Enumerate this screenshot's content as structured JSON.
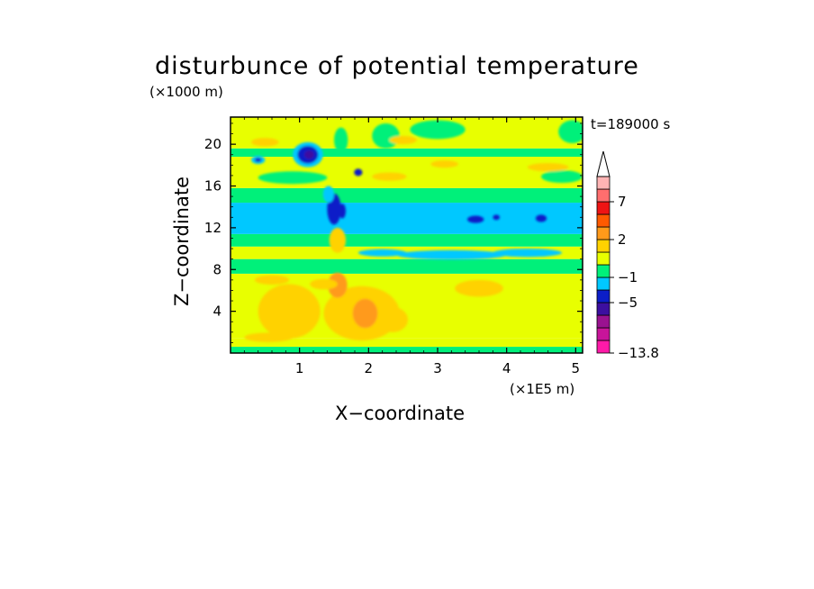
{
  "chart_data": {
    "type": "heatmap",
    "title": "disturbunce of potential temperature",
    "xlabel": "X−coordinate",
    "ylabel": "Z−coordinate",
    "x_unit": "(×1E5 m)",
    "y_unit": "(×1000 m)",
    "time_label": "t=189000 s",
    "xlim": [
      0,
      5.1
    ],
    "ylim": [
      0,
      22.6
    ],
    "xticks": [
      {
        "value": 1,
        "label": "1"
      },
      {
        "value": 2,
        "label": "2"
      },
      {
        "value": 3,
        "label": "3"
      },
      {
        "value": 4,
        "label": "4"
      },
      {
        "value": 5,
        "label": "5"
      }
    ],
    "yticks": [
      {
        "value": 4,
        "label": "4"
      },
      {
        "value": 8,
        "label": "8"
      },
      {
        "value": 12,
        "label": "12"
      },
      {
        "value": 16,
        "label": "16"
      },
      {
        "value": 20,
        "label": "20"
      }
    ],
    "colorbar": {
      "max_arrow_color": "#ffffff",
      "levels": [
        {
          "color": "#ff1aa8"
        },
        {
          "color": "#c8149a"
        },
        {
          "color": "#9a1290"
        },
        {
          "color": "#3c0fa0"
        },
        {
          "color": "#0c1ec8"
        },
        {
          "color": "#00c8ff"
        },
        {
          "color": "#00f07a"
        },
        {
          "color": "#e8ff00"
        },
        {
          "color": "#ffd200"
        },
        {
          "color": "#ff9a1a"
        },
        {
          "color": "#ff5a00"
        },
        {
          "color": "#ee1414"
        },
        {
          "color": "#ff6e6e"
        },
        {
          "color": "#ffb4b4"
        }
      ],
      "labels": [
        {
          "label": "−13.8",
          "at_level": 0
        },
        {
          "label": "−5",
          "at_level": 4
        },
        {
          "label": "−1",
          "at_level": 6
        },
        {
          "label": "2",
          "at_level": 9
        },
        {
          "label": "7",
          "at_level": 12
        }
      ]
    },
    "bands": [
      {
        "z0": 0,
        "z1": 0.6,
        "color": "#00f07a"
      },
      {
        "z0": 0.6,
        "z1": 1.4,
        "color": "#e8ff00"
      },
      {
        "z0": 1.4,
        "z1": 7.6,
        "color": "#e8ff00"
      },
      {
        "z0": 7.6,
        "z1": 9.0,
        "color": "#00f07a"
      },
      {
        "z0": 9.0,
        "z1": 10.2,
        "color": "#e8ff00"
      },
      {
        "z0": 10.2,
        "z1": 11.4,
        "color": "#00f07a"
      },
      {
        "z0": 11.4,
        "z1": 14.4,
        "color": "#00c8ff"
      },
      {
        "z0": 14.4,
        "z1": 15.8,
        "color": "#00f07a"
      },
      {
        "z0": 15.8,
        "z1": 18.8,
        "color": "#e8ff00"
      },
      {
        "z0": 18.8,
        "z1": 19.6,
        "color": "#00f07a"
      },
      {
        "z0": 19.6,
        "z1": 22.6,
        "color": "#e8ff00"
      }
    ],
    "blobs": [
      {
        "x": 0.85,
        "z": 4.0,
        "rx": 0.45,
        "rz": 2.6,
        "color": "#ffd200"
      },
      {
        "x": 1.9,
        "z": 3.8,
        "rx": 0.55,
        "rz": 2.6,
        "color": "#ffd200"
      },
      {
        "x": 1.95,
        "z": 3.8,
        "rx": 0.18,
        "rz": 1.4,
        "color": "#ff9a1a"
      },
      {
        "x": 1.55,
        "z": 6.5,
        "rx": 0.14,
        "rz": 1.2,
        "color": "#ff9a1a"
      },
      {
        "x": 1.35,
        "z": 6.6,
        "rx": 0.2,
        "rz": 0.5,
        "color": "#ffd200"
      },
      {
        "x": 2.35,
        "z": 3.2,
        "rx": 0.22,
        "rz": 1.2,
        "color": "#ffd200"
      },
      {
        "x": 0.55,
        "z": 1.5,
        "rx": 0.35,
        "rz": 0.45,
        "color": "#ffd200"
      },
      {
        "x": 3.6,
        "z": 6.2,
        "rx": 0.35,
        "rz": 0.8,
        "color": "#ffd200"
      },
      {
        "x": 0.6,
        "z": 7.0,
        "rx": 0.25,
        "rz": 0.45,
        "color": "#ffd200"
      },
      {
        "x": 1.55,
        "z": 10.8,
        "rx": 0.12,
        "rz": 1.2,
        "color": "#ffd200"
      },
      {
        "x": 2.2,
        "z": 9.6,
        "rx": 0.35,
        "rz": 0.35,
        "color": "#00c8ff"
      },
      {
        "x": 3.2,
        "z": 9.4,
        "rx": 0.8,
        "rz": 0.45,
        "color": "#00c8ff"
      },
      {
        "x": 4.3,
        "z": 9.6,
        "rx": 0.5,
        "rz": 0.4,
        "color": "#00c8ff"
      },
      {
        "x": 1.5,
        "z": 13.8,
        "rx": 0.1,
        "rz": 1.5,
        "color": "#0c1ec8"
      },
      {
        "x": 1.62,
        "z": 13.6,
        "rx": 0.05,
        "rz": 0.7,
        "color": "#0c1ec8"
      },
      {
        "x": 1.42,
        "z": 15.2,
        "rx": 0.08,
        "rz": 0.8,
        "color": "#00c8ff"
      },
      {
        "x": 3.55,
        "z": 12.8,
        "rx": 0.12,
        "rz": 0.35,
        "color": "#0c1ec8"
      },
      {
        "x": 3.85,
        "z": 13.0,
        "rx": 0.05,
        "rz": 0.25,
        "color": "#0c1ec8"
      },
      {
        "x": 4.5,
        "z": 12.9,
        "rx": 0.08,
        "rz": 0.35,
        "color": "#0c1ec8"
      },
      {
        "x": 1.12,
        "z": 19.0,
        "rx": 0.22,
        "rz": 1.2,
        "color": "#00c8ff"
      },
      {
        "x": 1.12,
        "z": 19.0,
        "rx": 0.15,
        "rz": 0.85,
        "color": "#0c1ec8"
      },
      {
        "x": 1.14,
        "z": 19.0,
        "rx": 0.07,
        "rz": 0.4,
        "color": "#3c0fa0"
      },
      {
        "x": 0.4,
        "z": 18.5,
        "rx": 0.1,
        "rz": 0.4,
        "color": "#00c8ff"
      },
      {
        "x": 0.4,
        "z": 18.5,
        "rx": 0.05,
        "rz": 0.2,
        "color": "#0c1ec8"
      },
      {
        "x": 1.85,
        "z": 17.3,
        "rx": 0.06,
        "rz": 0.35,
        "color": "#0c1ec8"
      },
      {
        "x": 1.6,
        "z": 20.4,
        "rx": 0.1,
        "rz": 1.2,
        "color": "#00f07a"
      },
      {
        "x": 2.25,
        "z": 20.8,
        "rx": 0.2,
        "rz": 1.2,
        "color": "#00f07a"
      },
      {
        "x": 3.0,
        "z": 21.4,
        "rx": 0.4,
        "rz": 0.9,
        "color": "#00f07a"
      },
      {
        "x": 4.95,
        "z": 21.2,
        "rx": 0.2,
        "rz": 1.1,
        "color": "#00f07a"
      },
      {
        "x": 0.9,
        "z": 16.8,
        "rx": 0.5,
        "rz": 0.6,
        "color": "#00f07a"
      },
      {
        "x": 4.8,
        "z": 16.9,
        "rx": 0.3,
        "rz": 0.6,
        "color": "#00f07a"
      },
      {
        "x": 0.5,
        "z": 20.2,
        "rx": 0.2,
        "rz": 0.4,
        "color": "#ffd200"
      },
      {
        "x": 2.3,
        "z": 16.9,
        "rx": 0.25,
        "rz": 0.4,
        "color": "#ffd200"
      },
      {
        "x": 4.6,
        "z": 17.8,
        "rx": 0.3,
        "rz": 0.4,
        "color": "#ffd200"
      },
      {
        "x": 3.1,
        "z": 18.1,
        "rx": 0.2,
        "rz": 0.35,
        "color": "#ffd200"
      },
      {
        "x": 2.5,
        "z": 20.4,
        "rx": 0.2,
        "rz": 0.4,
        "color": "#ffd200"
      }
    ]
  }
}
